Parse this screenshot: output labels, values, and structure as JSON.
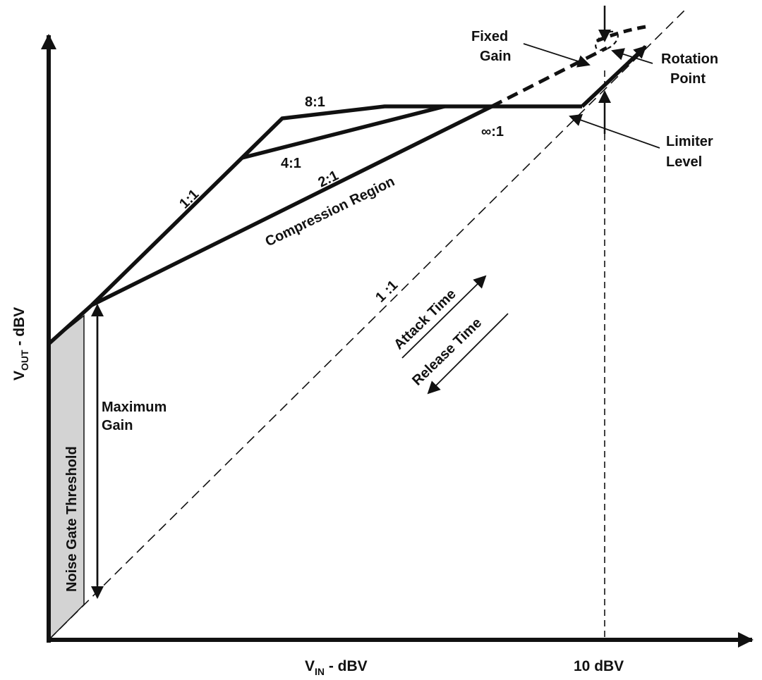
{
  "diagram": {
    "axes": {
      "y_label_main": "V",
      "y_label_sub": "OUT",
      "y_label_tail": " - dBV",
      "x_label_main": "V",
      "x_label_sub": "IN",
      "x_label_tail": " - dBV",
      "x_marker": "10 dBV"
    },
    "ratios": {
      "r_1_1_curve": "1:1",
      "r_8_1": "8:1",
      "r_4_1": "4:1",
      "r_2_1": "2:1",
      "r_inf_1": "∞:1",
      "r_1_1_reference": "1 :1"
    },
    "regions": {
      "compression": "Compression Region",
      "noise_gate": "Noise Gate Threshold"
    },
    "callouts": {
      "fixed_gain": [
        "Fixed",
        "Gain"
      ],
      "rotation_point": [
        "Rotation",
        "Point"
      ],
      "limiter_level": [
        "Limiter",
        "Level"
      ],
      "maximum_gain": [
        "Maximum",
        "Gain"
      ]
    },
    "timing": {
      "attack": "Attack Time",
      "release": "Release Time"
    },
    "colors": {
      "ink": "#111111",
      "noise_gate_fill": "#d3d3d3",
      "background": "#ffffff"
    }
  }
}
